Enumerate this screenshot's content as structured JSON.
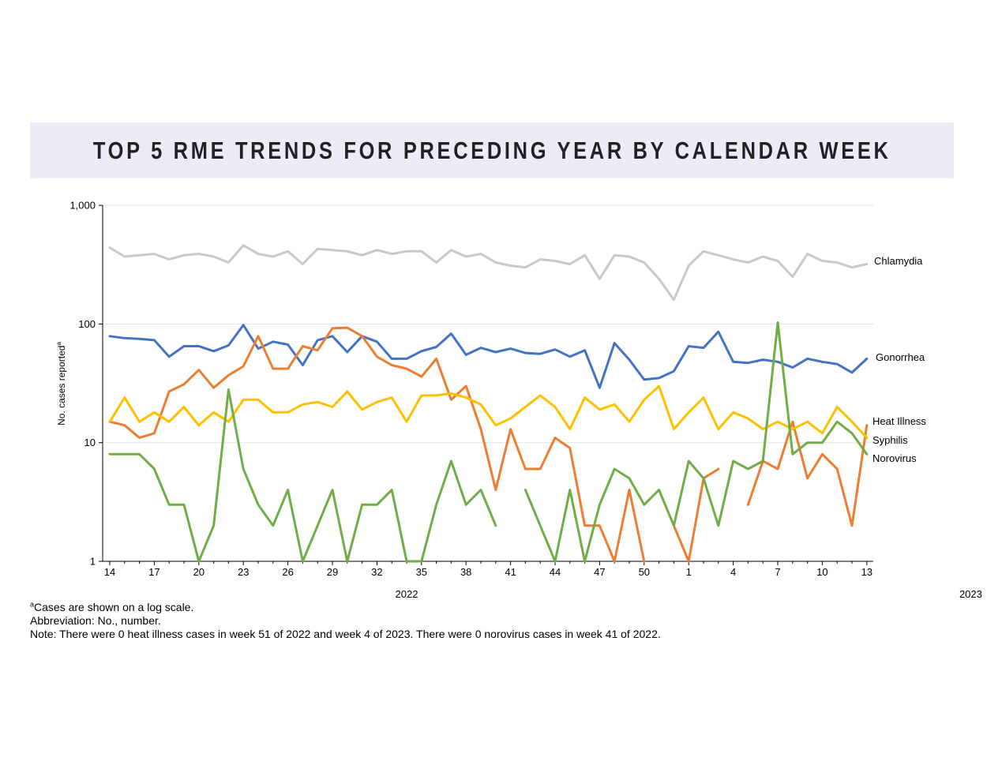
{
  "chart_data": {
    "type": "line",
    "title": "TOP 5 RME TRENDS FOR PRECEDING YEAR BY CALENDAR WEEK",
    "ylabel": "No. cases reported",
    "ylabel_sup": "a",
    "y_scale": "log",
    "ylim": [
      1,
      1000
    ],
    "y_ticks": [
      "1",
      "10",
      "100",
      "1,000"
    ],
    "grid": "horizontal",
    "x_years": [
      {
        "label": "2022",
        "under_week_index": 20
      },
      {
        "label": "2023",
        "under_week_index": 58
      }
    ],
    "x_tick_labels": [
      "14",
      "17",
      "20",
      "23",
      "26",
      "29",
      "32",
      "35",
      "38",
      "41",
      "44",
      "47",
      "50",
      "1",
      "4",
      "7",
      "10",
      "13"
    ],
    "x_tick_every": 3,
    "weeks": [
      "14",
      "15",
      "16",
      "17",
      "18",
      "19",
      "20",
      "21",
      "22",
      "23",
      "24",
      "25",
      "26",
      "27",
      "28",
      "29",
      "30",
      "31",
      "32",
      "33",
      "34",
      "35",
      "36",
      "37",
      "38",
      "39",
      "40",
      "41",
      "42",
      "43",
      "44",
      "45",
      "46",
      "47",
      "48",
      "49",
      "50",
      "51",
      "52",
      "1",
      "2",
      "3",
      "4",
      "5",
      "6",
      "7",
      "8",
      "9",
      "10",
      "11",
      "12",
      "13"
    ],
    "legend_placement": "right end labels",
    "series": [
      {
        "name": "Chlamydia",
        "color": "#c8c8c8",
        "values": [
          440,
          370,
          380,
          390,
          350,
          380,
          390,
          370,
          330,
          460,
          390,
          370,
          410,
          320,
          430,
          420,
          410,
          380,
          420,
          390,
          410,
          410,
          330,
          420,
          370,
          390,
          330,
          310,
          300,
          350,
          340,
          320,
          380,
          240,
          380,
          370,
          330,
          240,
          160,
          310,
          410,
          380,
          350,
          330,
          370,
          340,
          250,
          390,
          340,
          330,
          300,
          320
        ]
      },
      {
        "name": "Gonorrhea",
        "color": "#4472c4",
        "values": [
          79,
          76,
          75,
          73,
          53,
          65,
          65,
          59,
          66,
          98,
          62,
          71,
          67,
          45,
          73,
          79,
          58,
          79,
          71,
          51,
          51,
          59,
          64,
          83,
          55,
          63,
          58,
          62,
          57,
          56,
          61,
          53,
          60,
          29,
          69,
          50,
          34,
          35,
          40,
          65,
          63,
          86,
          48,
          47,
          50,
          48,
          43,
          51,
          48,
          46,
          39,
          51
        ]
      },
      {
        "name": "Heat Illness",
        "color": "#ed7d31",
        "values": [
          15,
          14,
          11,
          12,
          27,
          31,
          41,
          29,
          37,
          44,
          79,
          42,
          42,
          65,
          60,
          92,
          93,
          79,
          53,
          45,
          42,
          36,
          51,
          23,
          30,
          13,
          4,
          13,
          6,
          6,
          11,
          9,
          2,
          2,
          1,
          4,
          1,
          null,
          2,
          1,
          5,
          6,
          null,
          3,
          7,
          6,
          15,
          5,
          8,
          6,
          2,
          14
        ]
      },
      {
        "name": "Syphilis",
        "color": "#ffc000",
        "values": [
          15,
          24,
          15,
          18,
          15,
          20,
          14,
          18,
          15,
          23,
          23,
          18,
          18,
          21,
          22,
          20,
          27,
          19,
          22,
          24,
          15,
          25,
          25,
          26,
          24,
          21,
          14,
          16,
          20,
          25,
          20,
          13,
          24,
          19,
          21,
          15,
          23,
          30,
          13,
          18,
          24,
          13,
          18,
          16,
          13,
          15,
          13,
          15,
          12,
          20,
          15,
          11
        ]
      },
      {
        "name": "Norovirus",
        "color": "#70ad47",
        "values": [
          8,
          8,
          8,
          6,
          3,
          3,
          1,
          2,
          28,
          6,
          3,
          2,
          4,
          1,
          2,
          4,
          1,
          3,
          3,
          4,
          1,
          1,
          3,
          7,
          3,
          4,
          2,
          null,
          4,
          2,
          1,
          4,
          1,
          3,
          6,
          5,
          3,
          4,
          2,
          7,
          5,
          2,
          7,
          6,
          7,
          103,
          8,
          10,
          10,
          15,
          12,
          8
        ]
      }
    ]
  },
  "notes": {
    "line1_sup": "a",
    "line1": "Cases are shown on a log scale.",
    "line2": "Abbreviation: No., number.",
    "line3": "Note: There were 0 heat illness cases in week 51 of 2022 and week 4 of 2023. There were 0 norovirus cases in week 41 of 2022."
  }
}
